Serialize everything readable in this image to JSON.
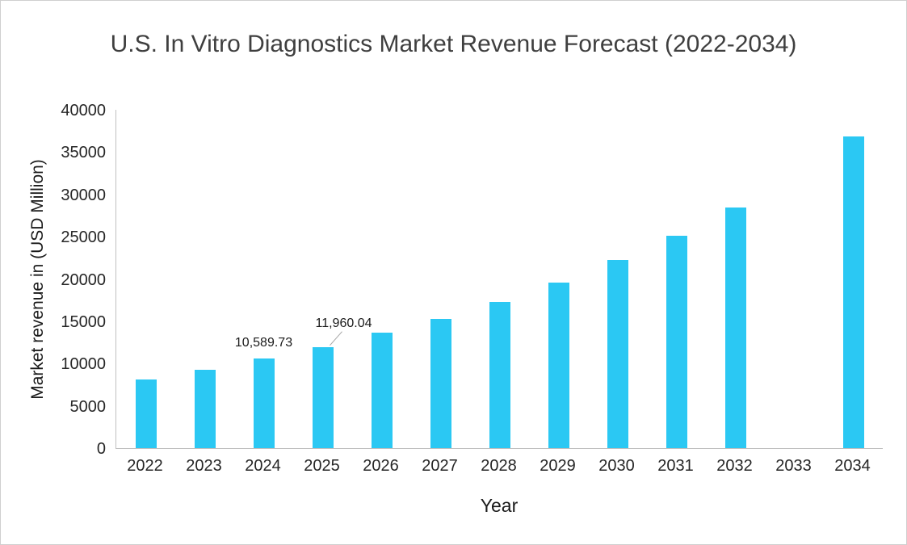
{
  "chart_data": {
    "type": "bar",
    "title": "U.S. In Vitro Diagnostics Market Revenue Forecast (2022-2034)",
    "xlabel": "Year",
    "ylabel": "Market revenue in (USD Million)",
    "categories": [
      "2022",
      "2023",
      "2024",
      "2025",
      "2026",
      "2027",
      "2028",
      "2029",
      "2030",
      "2031",
      "2032",
      "2033",
      "2034"
    ],
    "values": [
      8100,
      9240,
      10589.73,
      11960.04,
      13620,
      15240,
      17250,
      19550,
      22200,
      25100,
      28450,
      null,
      36860
    ],
    "ylim": [
      0,
      40000
    ],
    "ytick_step": 5000,
    "grid": false,
    "legend": false,
    "bar_color": "#2BC8F3",
    "axis_line_color": "#bfbfbf",
    "leader_line_color": "#a6a6a6",
    "data_labels": [
      {
        "index": 2,
        "text": "10,589.73",
        "leader": false
      },
      {
        "index": 3,
        "text": "11,960.04",
        "leader": true
      }
    ]
  }
}
